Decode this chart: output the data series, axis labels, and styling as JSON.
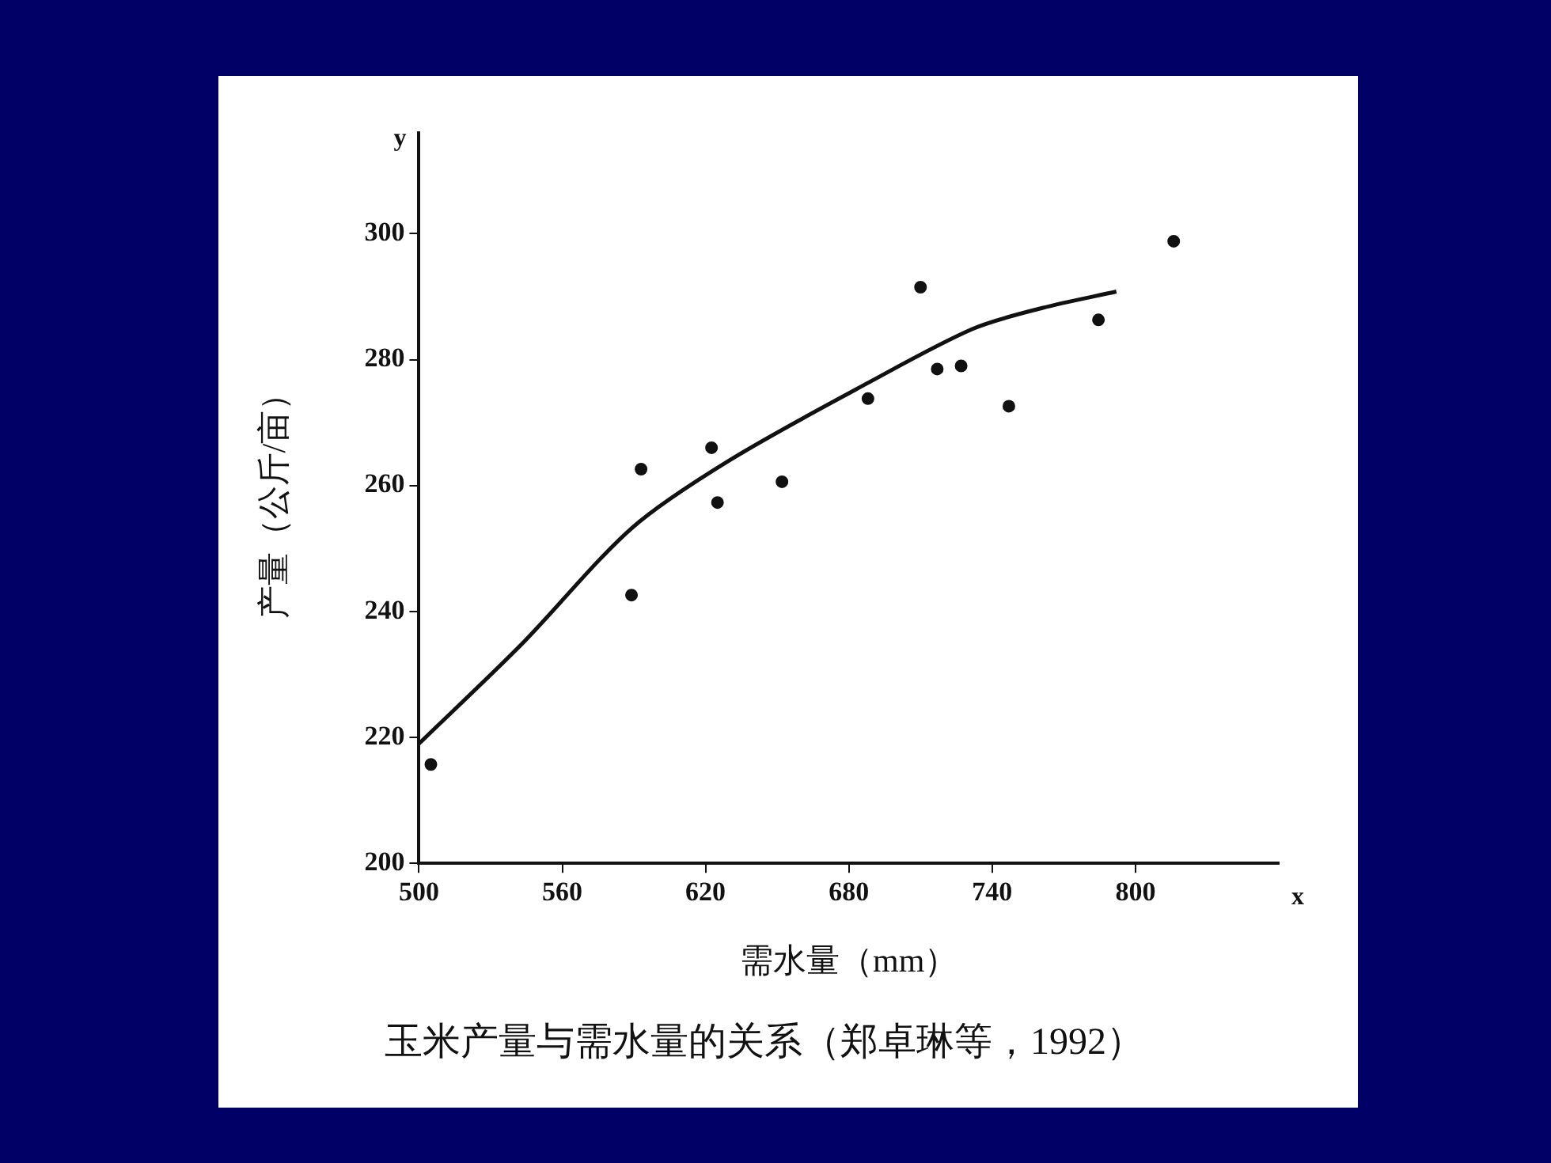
{
  "chart_data": {
    "type": "scatter",
    "title": "玉米产量与需水量的关系（郑卓琳等，1992）",
    "xlabel": "需水量（mm）",
    "ylabel": "产量（公斤/亩）",
    "annotations": [
      "x",
      "y"
    ],
    "xlim": [
      500,
      860
    ],
    "xticks": [
      500,
      560,
      620,
      680,
      740,
      800
    ],
    "ylim": [
      200,
      316
    ],
    "yticks": [
      200,
      220,
      240,
      260,
      280,
      300
    ],
    "grid": false,
    "legend": false,
    "series": [
      {
        "color": "#111111",
        "marker": "circle",
        "x": [
          505,
          589,
          593,
          622.5,
          625,
          652,
          688,
          710,
          717,
          727,
          747,
          784.5,
          816
        ],
        "values": [
          215.7,
          242.6,
          262.6,
          266,
          257.3,
          260.6,
          273.8,
          291.5,
          278.5,
          279,
          272.6,
          286.3,
          298.8
        ]
      },
      {
        "type": "line",
        "color": "#111111",
        "marker": "none",
        "line_style": "solid",
        "x": [
          500,
          543,
          589,
          630,
          688.5,
          732,
          761,
          792
        ],
        "values": [
          219,
          234.8,
          253.2,
          264,
          276.4,
          284.9,
          288.2,
          290.8
        ]
      }
    ]
  }
}
